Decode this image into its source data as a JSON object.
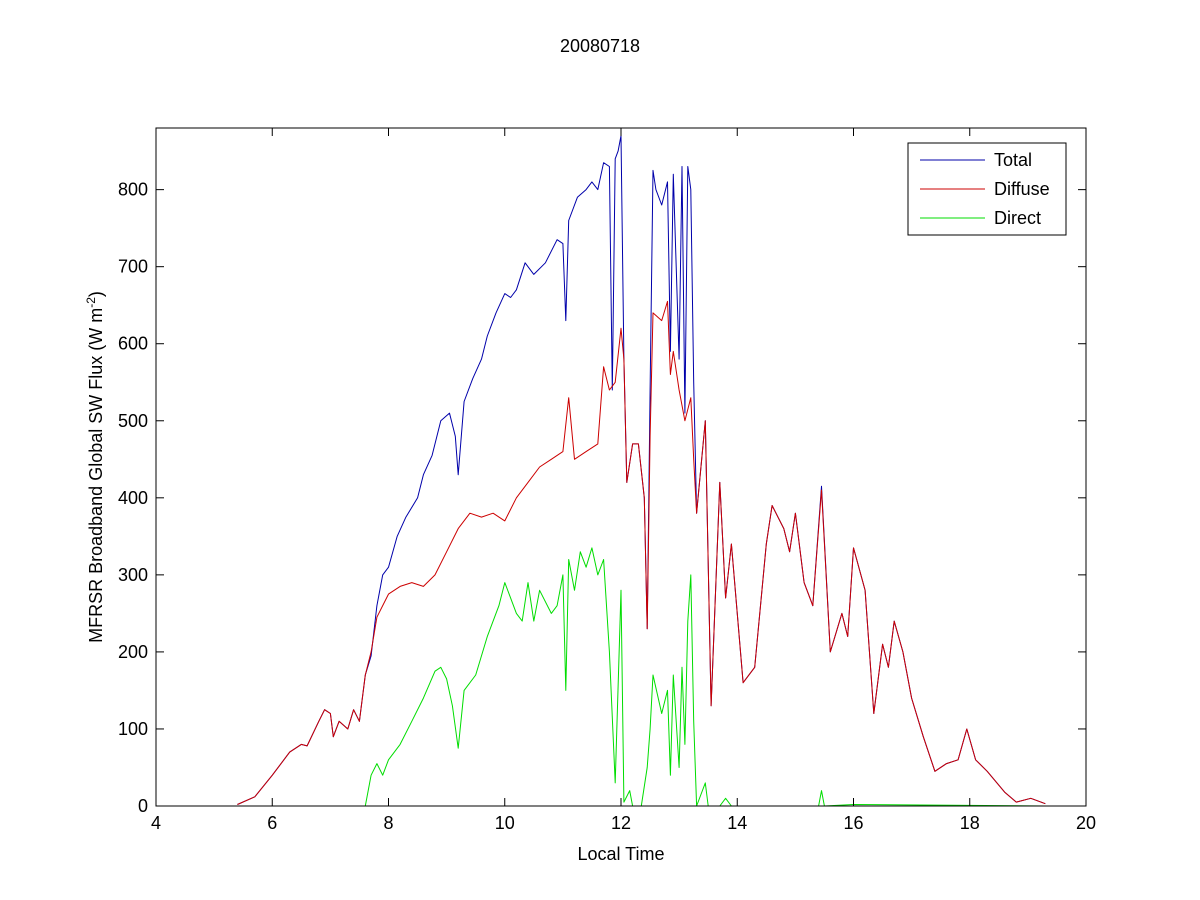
{
  "chart_data": {
    "type": "line",
    "title": "20080718",
    "xlabel": "Local Time",
    "ylabel_main": "MFRSR Broadband Global SW Flux (W m",
    "ylabel_sup": "-2",
    "ylabel_close": ")",
    "xlim": [
      4,
      20
    ],
    "ylim": [
      0,
      880
    ],
    "xticks": [
      4,
      6,
      8,
      10,
      12,
      14,
      16,
      18,
      20
    ],
    "yticks": [
      0,
      100,
      200,
      300,
      400,
      500,
      600,
      700,
      800
    ],
    "legend_position": "top-right",
    "grid": false,
    "series": [
      {
        "name": "Total",
        "color": "#0000aa",
        "points": [
          [
            5.4,
            2
          ],
          [
            5.7,
            12
          ],
          [
            6.0,
            40
          ],
          [
            6.3,
            70
          ],
          [
            6.5,
            80
          ],
          [
            6.6,
            78
          ],
          [
            6.8,
            110
          ],
          [
            6.9,
            125
          ],
          [
            7.0,
            120
          ],
          [
            7.05,
            90
          ],
          [
            7.15,
            110
          ],
          [
            7.3,
            100
          ],
          [
            7.4,
            125
          ],
          [
            7.5,
            110
          ],
          [
            7.6,
            170
          ],
          [
            7.7,
            195
          ],
          [
            7.8,
            260
          ],
          [
            7.9,
            300
          ],
          [
            8.0,
            310
          ],
          [
            8.15,
            350
          ],
          [
            8.3,
            375
          ],
          [
            8.5,
            400
          ],
          [
            8.6,
            430
          ],
          [
            8.75,
            455
          ],
          [
            8.9,
            500
          ],
          [
            9.05,
            510
          ],
          [
            9.15,
            480
          ],
          [
            9.2,
            430
          ],
          [
            9.3,
            525
          ],
          [
            9.45,
            555
          ],
          [
            9.6,
            580
          ],
          [
            9.7,
            610
          ],
          [
            9.85,
            640
          ],
          [
            10.0,
            665
          ],
          [
            10.1,
            660
          ],
          [
            10.2,
            670
          ],
          [
            10.35,
            705
          ],
          [
            10.5,
            690
          ],
          [
            10.7,
            705
          ],
          [
            10.9,
            735
          ],
          [
            11.0,
            730
          ],
          [
            11.05,
            630
          ],
          [
            11.1,
            760
          ],
          [
            11.25,
            790
          ],
          [
            11.4,
            800
          ],
          [
            11.5,
            810
          ],
          [
            11.6,
            800
          ],
          [
            11.7,
            835
          ],
          [
            11.8,
            830
          ],
          [
            11.85,
            540
          ],
          [
            11.9,
            840
          ],
          [
            11.95,
            850
          ],
          [
            12.0,
            870
          ],
          [
            12.05,
            580
          ],
          [
            12.1,
            420
          ],
          [
            12.2,
            470
          ],
          [
            12.3,
            470
          ],
          [
            12.4,
            400
          ],
          [
            12.45,
            230
          ],
          [
            12.5,
            540
          ],
          [
            12.55,
            825
          ],
          [
            12.6,
            800
          ],
          [
            12.7,
            780
          ],
          [
            12.8,
            810
          ],
          [
            12.85,
            590
          ],
          [
            12.9,
            820
          ],
          [
            13.0,
            580
          ],
          [
            13.05,
            830
          ],
          [
            13.1,
            510
          ],
          [
            13.15,
            830
          ],
          [
            13.2,
            800
          ],
          [
            13.25,
            550
          ],
          [
            13.3,
            380
          ],
          [
            13.45,
            500
          ],
          [
            13.55,
            130
          ],
          [
            13.7,
            420
          ],
          [
            13.8,
            270
          ],
          [
            13.9,
            340
          ],
          [
            14.1,
            160
          ],
          [
            14.3,
            180
          ],
          [
            14.5,
            340
          ],
          [
            14.6,
            390
          ],
          [
            14.8,
            360
          ],
          [
            14.9,
            330
          ],
          [
            15.0,
            380
          ],
          [
            15.15,
            290
          ],
          [
            15.3,
            260
          ],
          [
            15.45,
            415
          ],
          [
            15.6,
            200
          ],
          [
            15.8,
            250
          ],
          [
            15.9,
            220
          ],
          [
            16.0,
            335
          ],
          [
            16.2,
            280
          ],
          [
            16.35,
            120
          ],
          [
            16.5,
            210
          ],
          [
            16.6,
            180
          ],
          [
            16.7,
            240
          ],
          [
            16.85,
            200
          ],
          [
            17.0,
            140
          ],
          [
            17.2,
            90
          ],
          [
            17.4,
            45
          ],
          [
            17.6,
            55
          ],
          [
            17.8,
            60
          ],
          [
            17.95,
            100
          ],
          [
            18.1,
            60
          ],
          [
            18.3,
            45
          ],
          [
            18.6,
            18
          ],
          [
            18.8,
            5
          ],
          [
            19.05,
            10
          ],
          [
            19.3,
            3
          ]
        ]
      },
      {
        "name": "Diffuse",
        "color": "#cc0000",
        "points": [
          [
            5.4,
            2
          ],
          [
            5.7,
            12
          ],
          [
            6.0,
            40
          ],
          [
            6.3,
            70
          ],
          [
            6.5,
            80
          ],
          [
            6.6,
            78
          ],
          [
            6.8,
            110
          ],
          [
            6.9,
            125
          ],
          [
            7.0,
            120
          ],
          [
            7.05,
            90
          ],
          [
            7.15,
            110
          ],
          [
            7.3,
            100
          ],
          [
            7.4,
            125
          ],
          [
            7.5,
            110
          ],
          [
            7.6,
            170
          ],
          [
            7.7,
            200
          ],
          [
            7.8,
            245
          ],
          [
            8.0,
            275
          ],
          [
            8.2,
            285
          ],
          [
            8.4,
            290
          ],
          [
            8.6,
            285
          ],
          [
            8.8,
            300
          ],
          [
            9.0,
            330
          ],
          [
            9.2,
            360
          ],
          [
            9.4,
            380
          ],
          [
            9.6,
            375
          ],
          [
            9.8,
            380
          ],
          [
            10.0,
            370
          ],
          [
            10.2,
            400
          ],
          [
            10.4,
            420
          ],
          [
            10.6,
            440
          ],
          [
            10.8,
            450
          ],
          [
            11.0,
            460
          ],
          [
            11.1,
            530
          ],
          [
            11.2,
            450
          ],
          [
            11.4,
            460
          ],
          [
            11.6,
            470
          ],
          [
            11.7,
            570
          ],
          [
            11.8,
            540
          ],
          [
            11.9,
            550
          ],
          [
            12.0,
            620
          ],
          [
            12.05,
            580
          ],
          [
            12.1,
            420
          ],
          [
            12.2,
            470
          ],
          [
            12.3,
            470
          ],
          [
            12.4,
            400
          ],
          [
            12.45,
            230
          ],
          [
            12.5,
            480
          ],
          [
            12.55,
            640
          ],
          [
            12.7,
            630
          ],
          [
            12.8,
            655
          ],
          [
            12.85,
            560
          ],
          [
            12.9,
            590
          ],
          [
            13.0,
            540
          ],
          [
            13.1,
            500
          ],
          [
            13.2,
            530
          ],
          [
            13.25,
            450
          ],
          [
            13.3,
            380
          ],
          [
            13.45,
            500
          ],
          [
            13.55,
            130
          ],
          [
            13.7,
            420
          ],
          [
            13.8,
            270
          ],
          [
            13.9,
            340
          ],
          [
            14.1,
            160
          ],
          [
            14.3,
            180
          ],
          [
            14.5,
            340
          ],
          [
            14.6,
            390
          ],
          [
            14.8,
            360
          ],
          [
            14.9,
            330
          ],
          [
            15.0,
            380
          ],
          [
            15.15,
            290
          ],
          [
            15.3,
            260
          ],
          [
            15.45,
            410
          ],
          [
            15.6,
            200
          ],
          [
            15.8,
            250
          ],
          [
            15.9,
            220
          ],
          [
            16.0,
            335
          ],
          [
            16.2,
            280
          ],
          [
            16.35,
            120
          ],
          [
            16.5,
            210
          ],
          [
            16.6,
            180
          ],
          [
            16.7,
            240
          ],
          [
            16.85,
            200
          ],
          [
            17.0,
            140
          ],
          [
            17.2,
            90
          ],
          [
            17.4,
            45
          ],
          [
            17.6,
            55
          ],
          [
            17.8,
            60
          ],
          [
            17.95,
            100
          ],
          [
            18.1,
            60
          ],
          [
            18.3,
            45
          ],
          [
            18.6,
            18
          ],
          [
            18.8,
            5
          ],
          [
            19.05,
            10
          ],
          [
            19.3,
            3
          ]
        ]
      },
      {
        "name": "Direct",
        "color": "#00dd00",
        "points": [
          [
            5.4,
            0
          ],
          [
            7.6,
            0
          ],
          [
            7.7,
            40
          ],
          [
            7.8,
            55
          ],
          [
            7.9,
            40
          ],
          [
            8.0,
            60
          ],
          [
            8.2,
            80
          ],
          [
            8.4,
            110
          ],
          [
            8.6,
            140
          ],
          [
            8.8,
            175
          ],
          [
            8.9,
            180
          ],
          [
            9.0,
            165
          ],
          [
            9.1,
            130
          ],
          [
            9.2,
            75
          ],
          [
            9.3,
            150
          ],
          [
            9.5,
            170
          ],
          [
            9.7,
            220
          ],
          [
            9.9,
            260
          ],
          [
            10.0,
            290
          ],
          [
            10.2,
            250
          ],
          [
            10.3,
            240
          ],
          [
            10.4,
            290
          ],
          [
            10.5,
            240
          ],
          [
            10.6,
            280
          ],
          [
            10.8,
            250
          ],
          [
            10.9,
            260
          ],
          [
            11.0,
            300
          ],
          [
            11.05,
            150
          ],
          [
            11.1,
            320
          ],
          [
            11.2,
            280
          ],
          [
            11.3,
            330
          ],
          [
            11.4,
            310
          ],
          [
            11.5,
            335
          ],
          [
            11.6,
            300
          ],
          [
            11.7,
            320
          ],
          [
            11.8,
            200
          ],
          [
            11.9,
            30
          ],
          [
            12.0,
            280
          ],
          [
            12.05,
            5
          ],
          [
            12.15,
            20
          ],
          [
            12.2,
            0
          ],
          [
            12.35,
            0
          ],
          [
            12.45,
            50
          ],
          [
            12.5,
            100
          ],
          [
            12.55,
            170
          ],
          [
            12.7,
            120
          ],
          [
            12.8,
            150
          ],
          [
            12.85,
            40
          ],
          [
            12.9,
            170
          ],
          [
            13.0,
            50
          ],
          [
            13.05,
            180
          ],
          [
            13.1,
            80
          ],
          [
            13.15,
            240
          ],
          [
            13.2,
            300
          ],
          [
            13.25,
            110
          ],
          [
            13.3,
            0
          ],
          [
            13.45,
            30
          ],
          [
            13.5,
            0
          ],
          [
            13.7,
            0
          ],
          [
            13.8,
            10
          ],
          [
            13.9,
            0
          ],
          [
            15.4,
            0
          ],
          [
            15.45,
            20
          ],
          [
            15.5,
            0
          ],
          [
            16.0,
            2
          ],
          [
            19.3,
            0
          ]
        ]
      }
    ]
  }
}
